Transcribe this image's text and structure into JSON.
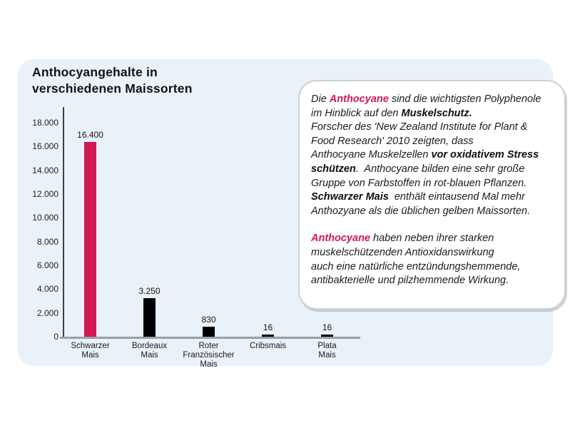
{
  "colors": {
    "accent": "#d21951",
    "bar_black": "#000000",
    "panel_bg": "#e9f1f9",
    "axis_x": "#98a1a5",
    "axis_y": "#3f3f3f"
  },
  "title": "Anthocyangehalte in\nverschiedenen Maissorten",
  "chart_data": {
    "type": "bar",
    "title": "Anthocyangehalte in verschiedenen Maissorten",
    "xlabel": "",
    "ylabel": "",
    "ylim": [
      0,
      18000
    ],
    "grid": false,
    "legend": false,
    "categories": [
      "Schwarzer Mais",
      "Bordeaux Mais",
      "Roter Französischer Mais",
      "Cribsmais",
      "Plata Mais"
    ],
    "category_lines": [
      "Schwarzer\nMais",
      "Bordeaux\nMais",
      "Roter\nFranzösischer\nMais",
      "Cribsmais",
      "Plata\nMais"
    ],
    "values": [
      16400,
      3250,
      830,
      16,
      16
    ],
    "value_labels": [
      "16.400",
      "3.250",
      "830",
      "16",
      "16"
    ],
    "bar_colors": [
      "#d21951",
      "#000000",
      "#000000",
      "#000000",
      "#000000"
    ],
    "y_ticks": [
      "18.000",
      "16.000",
      "14.000",
      "12.000",
      "10.000",
      "8.000",
      "6.000",
      "4.000",
      "2.000",
      "0"
    ],
    "y_tick_values": [
      18000,
      16000,
      14000,
      12000,
      10000,
      8000,
      6000,
      4000,
      2000,
      0
    ]
  },
  "infobox": {
    "paragraphs": [
      [
        {
          "text": "Die ",
          "style": "normal"
        },
        {
          "text": "Anthocyane",
          "style": "accent"
        },
        {
          "text": " sind die wichtigsten Polyphenole\nim Hinblick auf den ",
          "style": "normal"
        },
        {
          "text": "Muskelschutz.",
          "style": "bold"
        },
        {
          "text": "\nForscher des 'New Zealand Institute for Plant &\nFood Research' 2010 zeigten, dass\nAnthocyane Muskelzellen ",
          "style": "normal"
        },
        {
          "text": "vor oxidativem Stress\nschützen",
          "style": "bold"
        },
        {
          "text": ".  Anthocyane bilden eine sehr große\nGruppe von Farbstoffen in rot-blauen Pflanzen.\n",
          "style": "normal"
        },
        {
          "text": "Schwarzer Mais",
          "style": "bold"
        },
        {
          "text": "  enthält eintausend Mal mehr\nAnthozyane als die üblichen gelben Maissorten.",
          "style": "normal"
        }
      ],
      [
        {
          "text": "Anthocyane",
          "style": "accent"
        },
        {
          "text": " haben neben ihrer starken\nmuskelschützenden Antioxidanswirkung\nauch eine natürliche entzündungshemmende,\nantibakterielle und pilzhemmende Wirkung.",
          "style": "normal"
        }
      ]
    ]
  }
}
